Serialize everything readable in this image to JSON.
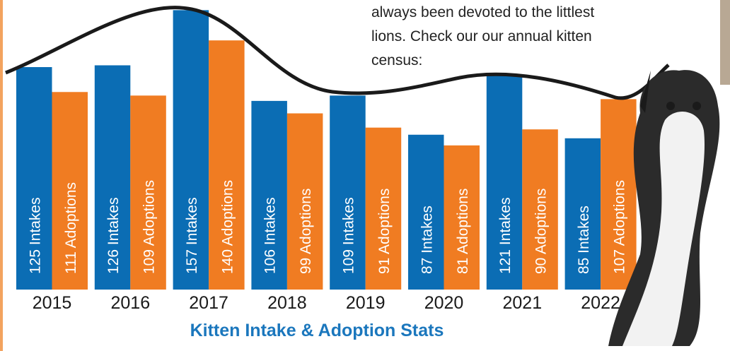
{
  "chart_data": {
    "type": "bar",
    "title": "Kitten Intake & Adoption Stats",
    "annotation": [
      "always been devoted to the littlest",
      "lions. Check our our annual kitten",
      "census:"
    ],
    "categories": [
      "2015",
      "2016",
      "2017",
      "2018",
      "2019",
      "2020",
      "2021",
      "2022"
    ],
    "series": [
      {
        "color": "#0b6db4",
        "values": [
          125,
          126,
          157,
          106,
          109,
          87,
          121,
          85
        ],
        "value_labels": [
          "125 Intakes",
          "126 Intakes",
          "157 Intakes",
          "106 Intakes",
          "109 Intakes",
          "87 Intakes",
          "121 Intakes",
          "85 Intakes"
        ]
      },
      {
        "color": "#f07c22",
        "values": [
          111,
          109,
          140,
          99,
          91,
          81,
          90,
          107
        ],
        "value_labels": [
          "111 Adoptions",
          "109 Adoptions",
          "140 Adoptions",
          "99 Adoptions",
          "91 Adoptions",
          "81 Adoptions",
          "90 Adoptions",
          "107 Adoptions"
        ]
      }
    ]
  }
}
